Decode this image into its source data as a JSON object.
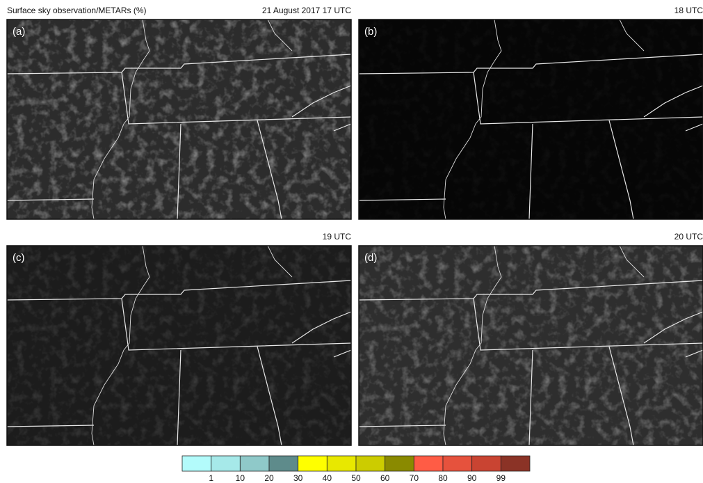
{
  "title": "Surface sky observation/METARs (%)",
  "date": "21 August 2017 17 UTC",
  "panels": [
    {
      "label": "(a)",
      "time": null
    },
    {
      "label": "(b)",
      "time": "18 UTC"
    },
    {
      "label": "(c)",
      "time": "19 UTC"
    },
    {
      "label": "(d)",
      "time": "20 UTC"
    }
  ],
  "colorbar": {
    "colors": [
      "#b3fbfb",
      "#a6e9e9",
      "#8fc9c9",
      "#5e8b8b",
      "#ffff00",
      "#e8e800",
      "#cccc00",
      "#8a8a00",
      "#ff5c45",
      "#e6523d",
      "#c94432",
      "#8b3326"
    ],
    "ticks": [
      1,
      10,
      20,
      30,
      40,
      50,
      60,
      70,
      80,
      90,
      99
    ]
  }
}
